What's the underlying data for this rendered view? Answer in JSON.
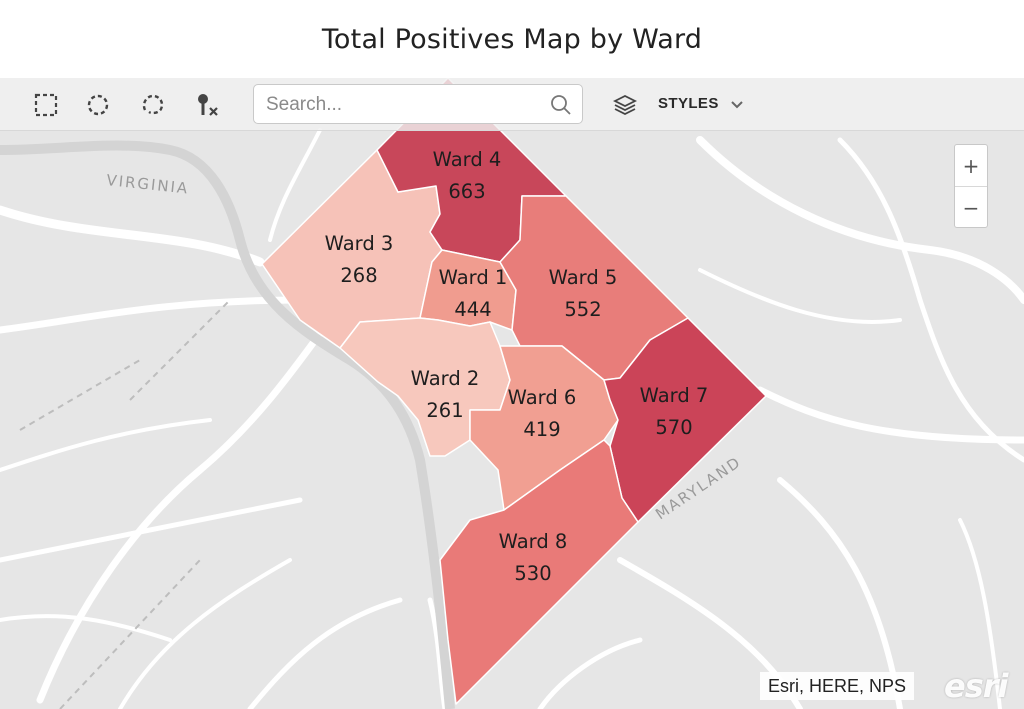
{
  "title": "Total Positives Map by Ward",
  "toolbar": {
    "tools": [
      "rectangle-select",
      "lasso-select",
      "circle-select",
      "clear-selection"
    ],
    "search_placeholder": "Search...",
    "styles_label": "STYLES"
  },
  "zoom": {
    "in_label": "+",
    "out_label": "−"
  },
  "place_labels": {
    "virginia": "VIRGINIA",
    "maryland": "MARYLAND"
  },
  "attribution": "Esri, HERE, NPS",
  "logo_text": "esri",
  "wards": [
    {
      "name": "Ward 4",
      "value": "663",
      "color": "#c8475a"
    },
    {
      "name": "Ward 3",
      "value": "268",
      "color": "#f6c2b8"
    },
    {
      "name": "Ward 1",
      "value": "444",
      "color": "#f09c8f"
    },
    {
      "name": "Ward 5",
      "value": "552",
      "color": "#e87d7a"
    },
    {
      "name": "Ward 2",
      "value": "261",
      "color": "#f7c8bd"
    },
    {
      "name": "Ward 6",
      "value": "419",
      "color": "#f19f92"
    },
    {
      "name": "Ward 7",
      "value": "570",
      "color": "#cb4458"
    },
    {
      "name": "Ward 8",
      "value": "530",
      "color": "#e97a78"
    }
  ],
  "colors": {
    "map_background": "#e6e6e6",
    "road": "#ffffff",
    "ward_border": "#ffffff"
  }
}
